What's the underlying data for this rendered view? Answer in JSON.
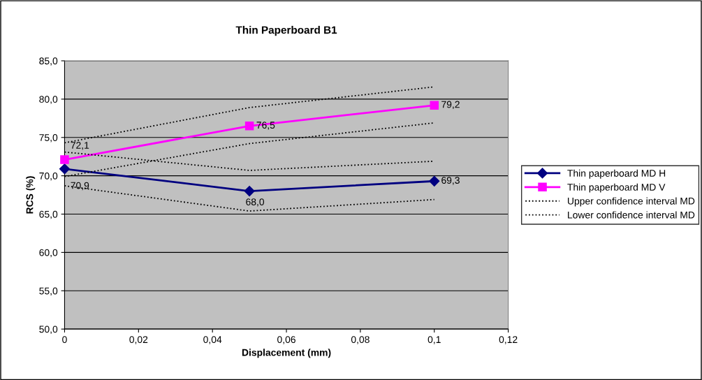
{
  "chart_data": {
    "type": "line",
    "title": "Thin Paperboard B1",
    "xlabel": "Displacement (mm)",
    "ylabel": "RCS (%)",
    "x": [
      0,
      0.05,
      0.1
    ],
    "series": [
      {
        "name": "Thin paperboard MD H",
        "color": "#000080",
        "marker": "diamond",
        "line_style": "solid",
        "values": [
          70.9,
          68.0,
          69.3
        ],
        "value_labels": [
          "70,9",
          "68,0",
          "69,3"
        ]
      },
      {
        "name": "Thin paperboard MD V",
        "color": "#ff00ff",
        "marker": "square",
        "line_style": "solid",
        "values": [
          72.1,
          76.5,
          79.2
        ],
        "value_labels": [
          "72,1",
          "76,5",
          "79,2"
        ]
      },
      {
        "name": "Upper confidence interval MD",
        "color": "#000000",
        "marker": "none",
        "line_style": "dotted",
        "values": [
          73.1,
          70.7,
          71.9
        ]
      },
      {
        "name": "Lower confidence interval MD",
        "color": "#000000",
        "marker": "none",
        "line_style": "dotted",
        "values": [
          68.7,
          65.4,
          66.9
        ]
      },
      {
        "color": "#000000",
        "marker": "none",
        "line_style": "dotted",
        "values": [
          74.3,
          78.9,
          81.6
        ]
      },
      {
        "color": "#000000",
        "marker": "none",
        "line_style": "dotted",
        "values": [
          69.9,
          74.2,
          76.9
        ]
      }
    ],
    "xlim": [
      0,
      0.12
    ],
    "xticks": [
      {
        "value": 0,
        "label": "0"
      },
      {
        "value": 0.02,
        "label": "0,02"
      },
      {
        "value": 0.04,
        "label": "0,04"
      },
      {
        "value": 0.06,
        "label": "0,06"
      },
      {
        "value": 0.08,
        "label": "0,08"
      },
      {
        "value": 0.1,
        "label": "0,1"
      },
      {
        "value": 0.12,
        "label": "0,12"
      }
    ],
    "ylim": [
      50,
      85
    ],
    "yticks": [
      {
        "value": 50,
        "label": "50,0"
      },
      {
        "value": 55,
        "label": "55,0"
      },
      {
        "value": 60,
        "label": "60,0"
      },
      {
        "value": 65,
        "label": "65,0"
      },
      {
        "value": 70,
        "label": "70,0"
      },
      {
        "value": 75,
        "label": "75,0"
      },
      {
        "value": 80,
        "label": "80,0"
      },
      {
        "value": 85,
        "label": "85,0"
      }
    ],
    "grid": "y",
    "legend": "right"
  }
}
